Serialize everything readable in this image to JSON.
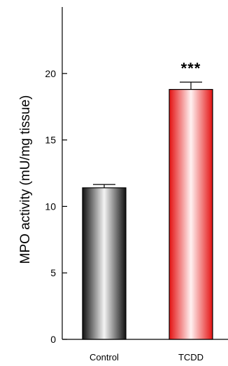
{
  "chart_data": {
    "type": "bar",
    "ylabel": "MPO activity (mU/mg tissue)",
    "ylim": [
      0,
      25
    ],
    "yticks": [
      "0",
      "5",
      "10",
      "15",
      "20"
    ],
    "ytick_values": [
      0,
      5,
      10,
      15,
      20
    ],
    "categories": [
      "Control",
      "TCDD"
    ],
    "values": [
      11.4,
      18.8
    ],
    "errors": [
      0.25,
      0.55
    ],
    "significance": [
      "",
      "***"
    ],
    "colors": [
      "#333333",
      "#ee2222"
    ],
    "grid": false
  }
}
